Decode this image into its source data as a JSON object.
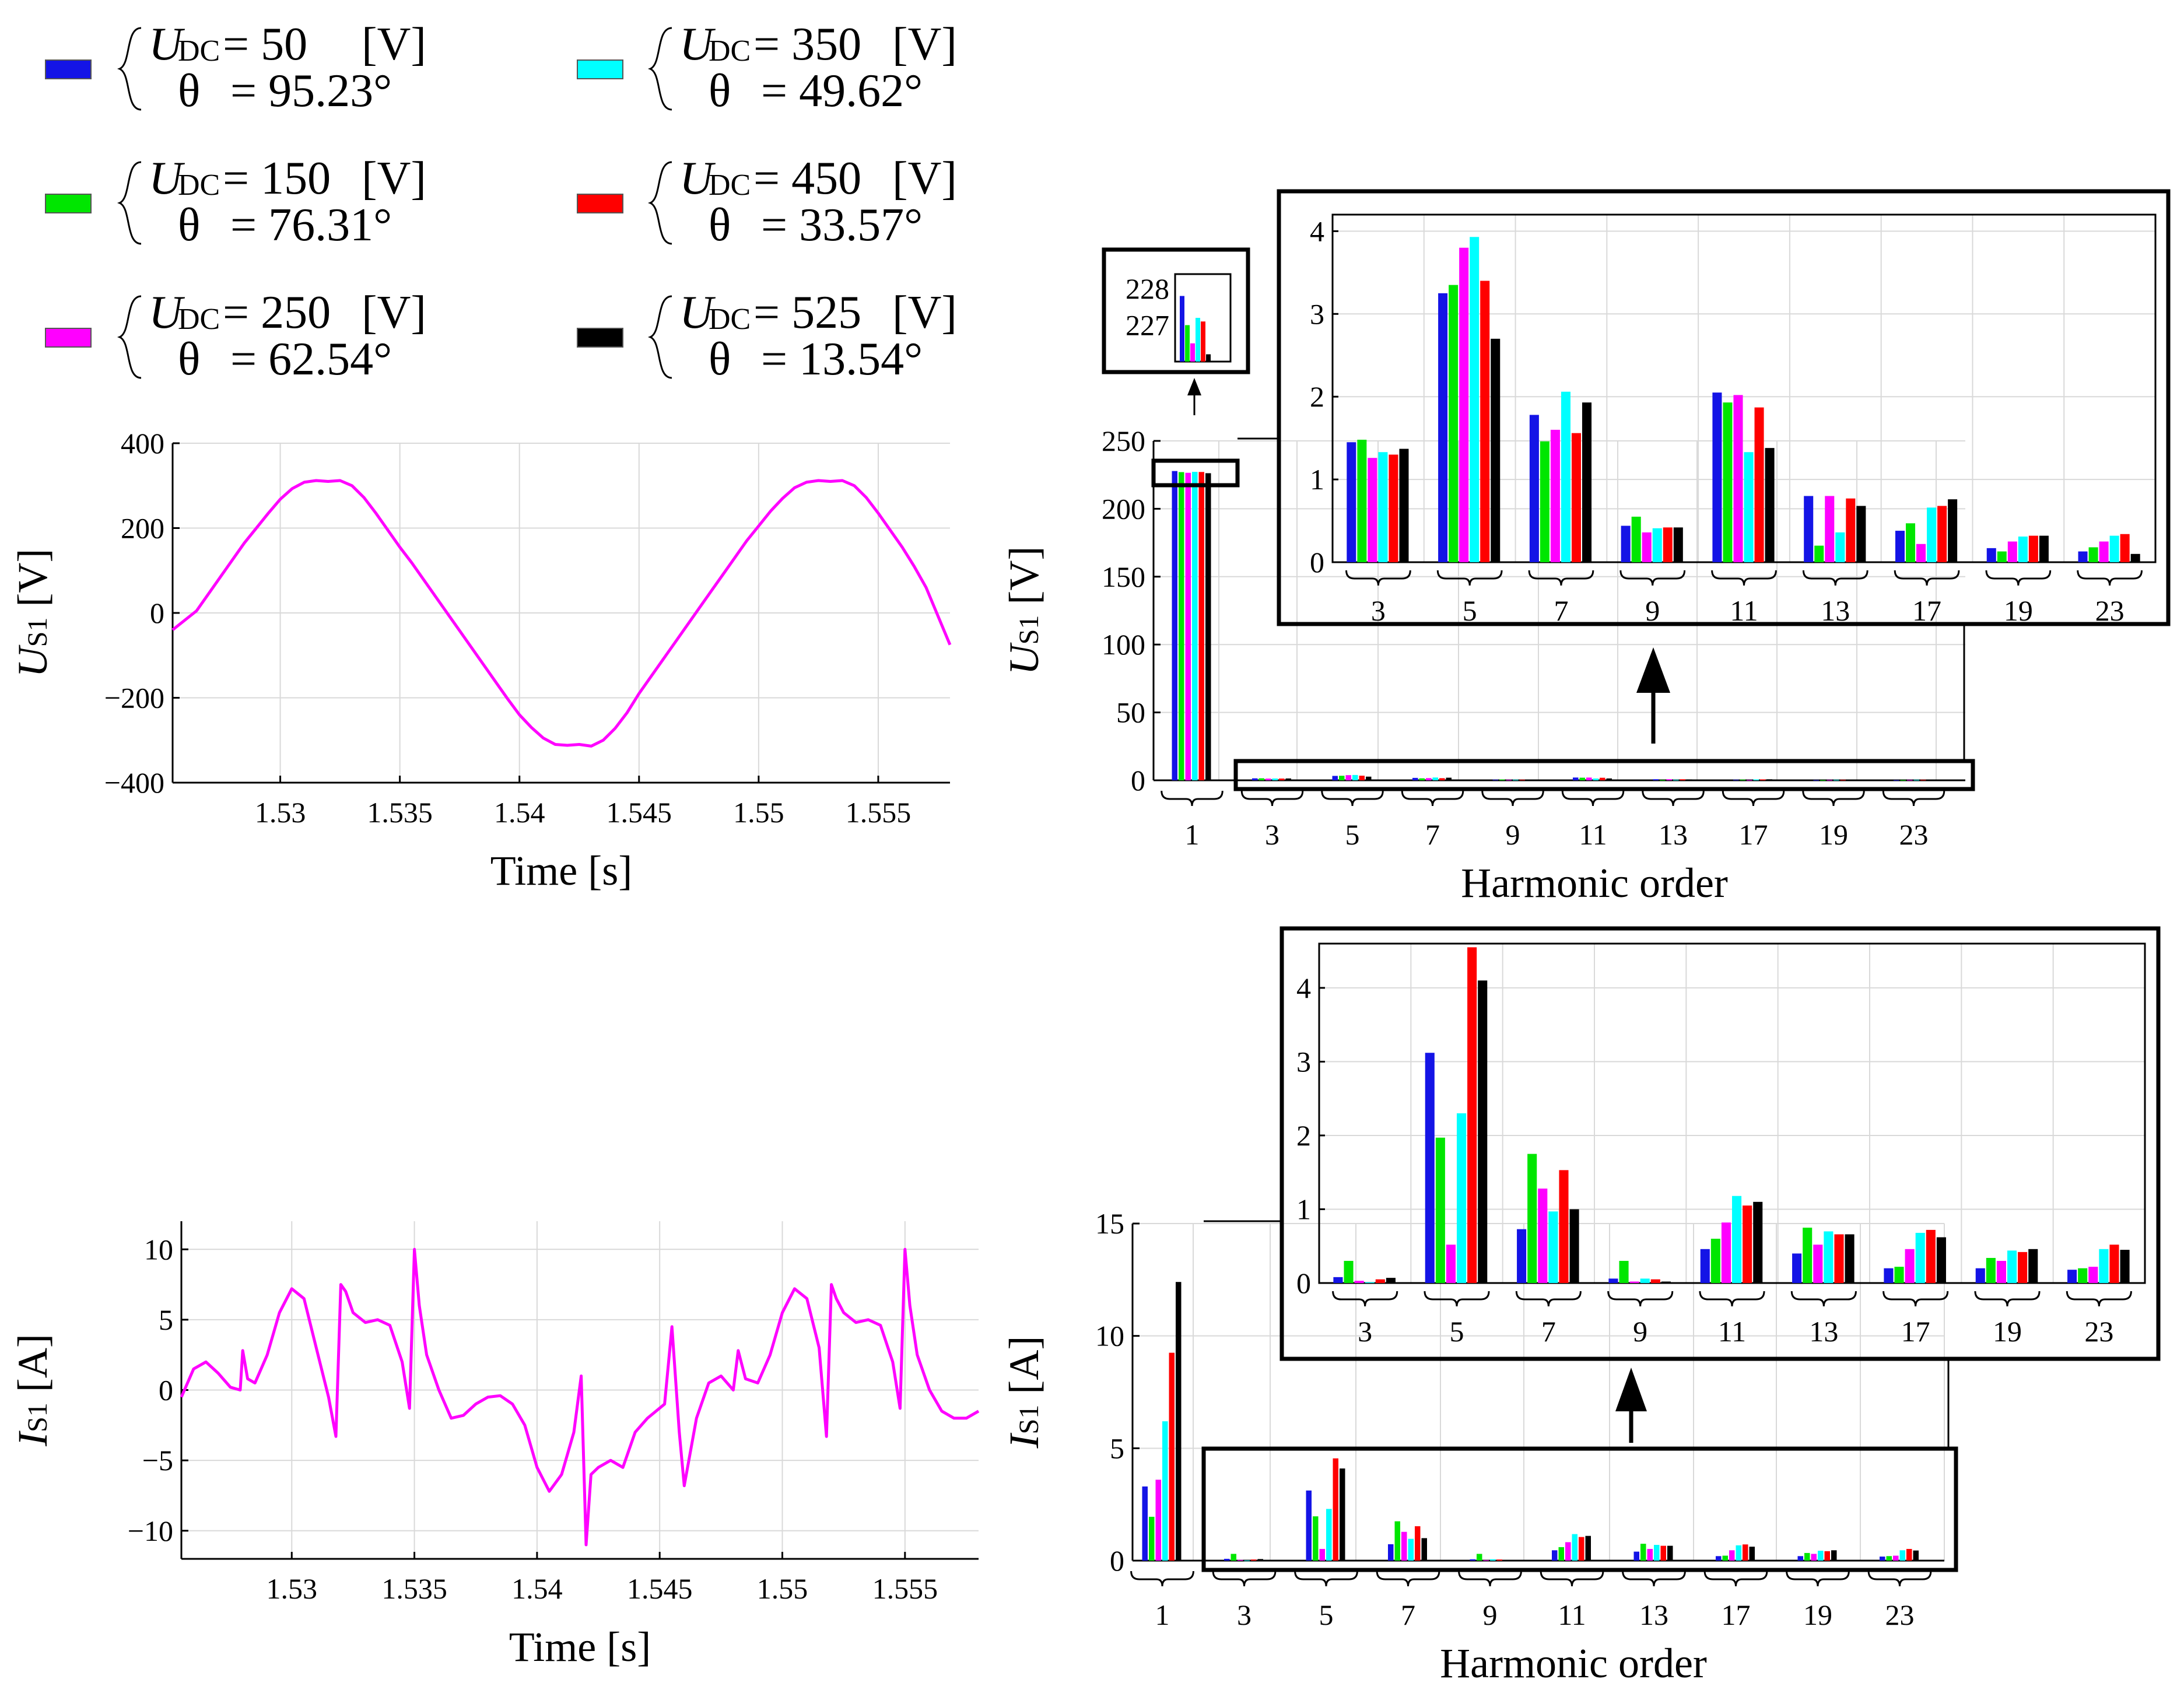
{
  "colors": [
    "#1414e6",
    "#00e600",
    "#ff00ff",
    "#00ffff",
    "#ff0000",
    "#000000"
  ],
  "legend": [
    {
      "series": "U_DC=50",
      "var": "U",
      "sub": "DC",
      "udc": "= 50",
      "unit": "[V]",
      "theta_sym": "θ",
      "theta": "= 95.23°"
    },
    {
      "series": "U_DC=150",
      "var": "U",
      "sub": "DC",
      "udc": "= 150",
      "unit": "[V]",
      "theta_sym": "θ",
      "theta": "= 76.31°"
    },
    {
      "series": "U_DC=250",
      "var": "U",
      "sub": "DC",
      "udc": "= 250",
      "unit": "[V]",
      "theta_sym": "θ",
      "theta": "= 62.54°"
    },
    {
      "series": "U_DC=350",
      "var": "U",
      "sub": "DC",
      "udc": "= 350",
      "unit": "[V]",
      "theta_sym": "θ",
      "theta": "= 49.62°"
    },
    {
      "series": "U_DC=450",
      "var": "U",
      "sub": "DC",
      "udc": "= 450",
      "unit": "[V]",
      "theta_sym": "θ",
      "theta": "= 33.57°"
    },
    {
      "series": "U_DC=525",
      "var": "U",
      "sub": "DC",
      "udc": "= 525",
      "unit": "[V]",
      "theta_sym": "θ",
      "theta": "= 13.54°"
    }
  ],
  "chart_data": [
    {
      "id": "us1_time",
      "type": "line",
      "xlabel": "Time [s]",
      "ylabel_var": "U",
      "ylabel_sub": "S1",
      "ylabel_unit": "[V]",
      "xlim": [
        1.5255,
        1.558
      ],
      "ylim": [
        -400,
        400
      ],
      "xticks": [
        1.53,
        1.535,
        1.54,
        1.545,
        1.55,
        1.555
      ],
      "xticklabels": [
        "1.53",
        "1.535",
        "1.54",
        "1.545",
        "1.55",
        "1.555"
      ],
      "yticks": [
        -400,
        -200,
        0,
        200,
        400
      ],
      "yticklabels": [
        "−400",
        "−200",
        "0",
        "200",
        "400"
      ],
      "series": [
        {
          "name": "U_S1",
          "color": "#ff00ff",
          "x": [
            1.5255,
            1.5265,
            1.527,
            1.5275,
            1.528,
            1.5285,
            1.529,
            1.5295,
            1.53,
            1.5305,
            1.531,
            1.5315,
            1.532,
            1.5325,
            1.533,
            1.5335,
            1.534,
            1.5345,
            1.535,
            1.5355,
            1.536,
            1.5365,
            1.537,
            1.5375,
            1.538,
            1.5385,
            1.539,
            1.5395,
            1.54,
            1.5405,
            1.541,
            1.5415,
            1.542,
            1.5425,
            1.543,
            1.5435,
            1.544,
            1.5445,
            1.545,
            1.5455,
            1.546,
            1.5465,
            1.547,
            1.5475,
            1.548,
            1.5485,
            1.549,
            1.5495,
            1.55,
            1.5505,
            1.551,
            1.5515,
            1.552,
            1.5525,
            1.553,
            1.5535,
            1.554,
            1.5545,
            1.555,
            1.5555,
            1.556,
            1.5565,
            1.557,
            1.558
          ],
          "y": [
            -40,
            5,
            45,
            85,
            125,
            165,
            200,
            235,
            268,
            293,
            308,
            312,
            310,
            312,
            300,
            272,
            235,
            195,
            155,
            118,
            78,
            38,
            -2,
            -42,
            -82,
            -122,
            -162,
            -202,
            -240,
            -270,
            -295,
            -310,
            -312,
            -310,
            -314,
            -300,
            -272,
            -235,
            -190,
            -150,
            -110,
            -70,
            -30,
            10,
            50,
            90,
            130,
            170,
            205,
            240,
            270,
            295,
            308,
            312,
            310,
            312,
            300,
            272,
            235,
            195,
            155,
            110,
            60,
            -75
          ]
        }
      ]
    },
    {
      "id": "us1_harmonics",
      "type": "bar",
      "xlabel": "Harmonic order",
      "ylabel_var": "U",
      "ylabel_sub": "S1",
      "ylabel_unit": "[V]",
      "ylim": [
        0,
        250
      ],
      "yticks": [
        0,
        50,
        100,
        150,
        200,
        250
      ],
      "categories": [
        "1",
        "3",
        "5",
        "7",
        "9",
        "11",
        "13",
        "17",
        "19",
        "23"
      ],
      "series": [
        {
          "name": "U_DC=50",
          "values": [
            227.8,
            1.45,
            3.25,
            1.78,
            0.44,
            2.05,
            0.8,
            0.38,
            0.17,
            0.13
          ]
        },
        {
          "name": "U_DC=150",
          "values": [
            227.0,
            1.48,
            3.35,
            1.46,
            0.55,
            1.93,
            0.2,
            0.47,
            0.13,
            0.18
          ]
        },
        {
          "name": "U_DC=250",
          "values": [
            226.5,
            1.26,
            3.8,
            1.6,
            0.36,
            2.02,
            0.8,
            0.22,
            0.25,
            0.25
          ]
        },
        {
          "name": "U_DC=350",
          "values": [
            227.2,
            1.33,
            3.93,
            2.06,
            0.41,
            1.33,
            0.36,
            0.66,
            0.31,
            0.32
          ]
        },
        {
          "name": "U_DC=450",
          "values": [
            227.1,
            1.3,
            3.4,
            1.56,
            0.42,
            1.87,
            0.77,
            0.68,
            0.32,
            0.34
          ]
        },
        {
          "name": "U_DC=525",
          "values": [
            226.2,
            1.37,
            2.7,
            1.93,
            0.42,
            1.38,
            0.68,
            0.76,
            0.32,
            0.1
          ]
        }
      ],
      "inset_zoom": {
        "ylim": [
          0,
          4.2
        ],
        "yticks": [
          0,
          1,
          2,
          3,
          4
        ],
        "categories": [
          "3",
          "5",
          "7",
          "9",
          "11",
          "13",
          "17",
          "19",
          "23"
        ]
      },
      "inset_fund": {
        "ylim": [
          226,
          228.4
        ],
        "yticks": [
          227,
          228
        ]
      }
    },
    {
      "id": "is1_time",
      "type": "line",
      "xlabel": "Time [s]",
      "ylabel_var": "I",
      "ylabel_sub": "S1",
      "ylabel_unit": "[A]",
      "xlim": [
        1.5255,
        1.558
      ],
      "ylim": [
        -12,
        12
      ],
      "xticks": [
        1.53,
        1.535,
        1.54,
        1.545,
        1.55,
        1.555
      ],
      "xticklabels": [
        "1.53",
        "1.535",
        "1.54",
        "1.545",
        "1.55",
        "1.555"
      ],
      "yticks": [
        -10,
        -5,
        0,
        5,
        10
      ],
      "yticklabels": [
        "−10",
        "−5",
        "0",
        "5",
        "10"
      ],
      "series": [
        {
          "name": "I_S1",
          "color": "#ff00ff",
          "x": [
            1.5255,
            1.526,
            1.5265,
            1.527,
            1.5275,
            1.5279,
            1.528,
            1.5282,
            1.5285,
            1.529,
            1.5295,
            1.53,
            1.5305,
            1.531,
            1.5315,
            1.5318,
            1.532,
            1.5322,
            1.5325,
            1.533,
            1.5335,
            1.534,
            1.5345,
            1.5348,
            1.535,
            1.5352,
            1.5355,
            1.536,
            1.5365,
            1.537,
            1.5375,
            1.538,
            1.5385,
            1.539,
            1.5395,
            1.54,
            1.5405,
            1.541,
            1.5415,
            1.5418,
            1.542,
            1.5422,
            1.5425,
            1.543,
            1.5435,
            1.544,
            1.5445,
            1.5452,
            1.5455,
            1.5458,
            1.546,
            1.5465,
            1.547,
            1.5475,
            1.548,
            1.5482,
            1.5485,
            1.549,
            1.5495,
            1.55,
            1.5505,
            1.551,
            1.5515,
            1.5518,
            1.552,
            1.5522,
            1.5525,
            1.553,
            1.5535,
            1.554,
            1.5545,
            1.5548,
            1.555,
            1.5552,
            1.5555,
            1.556,
            1.5565,
            1.557,
            1.5575,
            1.558
          ],
          "y": [
            -0.5,
            1.5,
            2.0,
            1.2,
            0.2,
            0.0,
            2.8,
            0.8,
            0.5,
            2.5,
            5.5,
            7.2,
            6.5,
            3.0,
            -0.5,
            -3.3,
            7.5,
            7.0,
            5.5,
            4.8,
            5.0,
            4.6,
            2.0,
            -1.3,
            10.0,
            6.0,
            2.5,
            0.0,
            -2.0,
            -1.8,
            -1.0,
            -0.5,
            -0.4,
            -1.0,
            -2.5,
            -5.5,
            -7.2,
            -6.0,
            -3.0,
            1.0,
            -11.0,
            -6.0,
            -5.5,
            -5.0,
            -5.5,
            -3.0,
            -2.0,
            -1.0,
            4.5,
            -3.0,
            -6.8,
            -2.0,
            0.5,
            1.0,
            0.0,
            2.8,
            0.8,
            0.5,
            2.5,
            5.5,
            7.2,
            6.5,
            3.0,
            -3.3,
            7.5,
            6.5,
            5.5,
            4.8,
            5.0,
            4.6,
            2.0,
            -1.3,
            10.0,
            6.0,
            2.5,
            0.0,
            -1.5,
            -2.0,
            -2.0,
            -1.5
          ]
        }
      ]
    },
    {
      "id": "is1_harmonics",
      "type": "bar",
      "xlabel": "Harmonic order",
      "ylabel_var": "I",
      "ylabel_sub": "S1",
      "ylabel_unit": "[A]",
      "ylim": [
        0,
        15
      ],
      "yticks": [
        0,
        5,
        10,
        15
      ],
      "categories": [
        "1",
        "3",
        "5",
        "7",
        "9",
        "11",
        "13",
        "17",
        "19",
        "23"
      ],
      "series": [
        {
          "name": "U_DC=50",
          "values": [
            3.3,
            0.08,
            3.12,
            0.73,
            0.06,
            0.46,
            0.4,
            0.2,
            0.2,
            0.18
          ]
        },
        {
          "name": "U_DC=150",
          "values": [
            1.95,
            0.3,
            1.97,
            1.75,
            0.3,
            0.6,
            0.75,
            0.22,
            0.34,
            0.2
          ]
        },
        {
          "name": "U_DC=250",
          "values": [
            3.6,
            0.03,
            0.52,
            1.28,
            0.02,
            0.82,
            0.52,
            0.46,
            0.3,
            0.22
          ]
        },
        {
          "name": "U_DC=350",
          "values": [
            6.2,
            0.01,
            2.3,
            0.97,
            0.06,
            1.18,
            0.7,
            0.68,
            0.44,
            0.46
          ]
        },
        {
          "name": "U_DC=450",
          "values": [
            9.25,
            0.05,
            4.55,
            1.53,
            0.05,
            1.05,
            0.66,
            0.72,
            0.42,
            0.52
          ]
        },
        {
          "name": "U_DC=525",
          "values": [
            12.4,
            0.07,
            4.1,
            1.0,
            0.02,
            1.1,
            0.66,
            0.62,
            0.46,
            0.45
          ]
        }
      ],
      "inset_zoom": {
        "ylim": [
          0,
          4.6
        ],
        "yticks": [
          0,
          1,
          2,
          3,
          4
        ],
        "categories": [
          "3",
          "5",
          "7",
          "9",
          "11",
          "13",
          "17",
          "19",
          "23"
        ]
      }
    }
  ]
}
